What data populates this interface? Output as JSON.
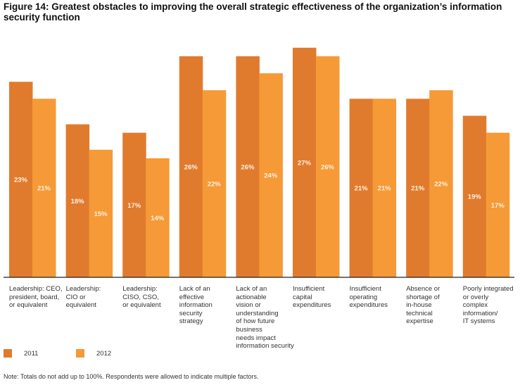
{
  "chart_data": {
    "type": "bar",
    "title": "Figure 14: Greatest obstacles to improving the overall strategic effectiveness of the organization’s information security function",
    "xlabel": "",
    "ylabel": "",
    "ylim": [
      0,
      30
    ],
    "grid": false,
    "legend_position": "bottom-left",
    "unit": "%",
    "categories": [
      [
        "Leadership: CEO,",
        "president, board,",
        "or equivalent"
      ],
      [
        "Leadership:",
        "CIO or",
        "equivalent"
      ],
      [
        "Leadership:",
        "CISO, CSO,",
        "or equivalent"
      ],
      [
        "Lack of an",
        "effective",
        "information",
        "security",
        "strategy"
      ],
      [
        "Lack of an",
        "actionable",
        "vision or",
        "understanding",
        "of how future",
        "business",
        "needs impact",
        "information security"
      ],
      [
        "Insufficient",
        "capital",
        "expenditures"
      ],
      [
        "Insufficient",
        "operating",
        "expenditures"
      ],
      [
        "Absence or",
        "shortage of",
        "in-house",
        "technical",
        "expertise"
      ],
      [
        "Poorly integrated",
        "or overly",
        "complex",
        "information/",
        "IT systems"
      ]
    ],
    "series": [
      {
        "name": "2011",
        "color": "#e07b2e",
        "values": [
          23,
          18,
          17,
          26,
          26,
          27,
          21,
          21,
          19
        ]
      },
      {
        "name": "2012",
        "color": "#f59a36",
        "values": [
          21,
          15,
          14,
          22,
          24,
          26,
          21,
          22,
          17
        ]
      }
    ]
  },
  "legend": [
    {
      "label": "2011",
      "color": "#e07b2e"
    },
    {
      "label": "2012",
      "color": "#f59a36"
    }
  ],
  "note": "Note: Totals do not add up to 100%. Respondents were allowed to indicate multiple factors."
}
